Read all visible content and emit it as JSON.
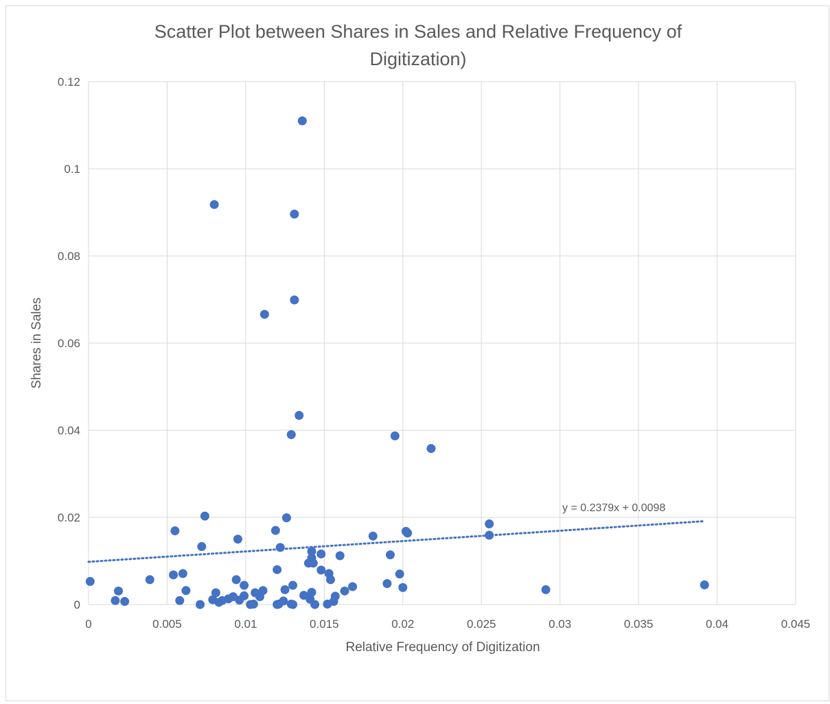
{
  "chart_data": {
    "type": "scatter",
    "title_line1": "Scatter Plot between Shares in Sales and Relative Frequency of",
    "title_line2": "Digitization)",
    "xlabel": "Relative Frequency of Digitization",
    "ylabel": "Shares in Sales",
    "xlim": [
      0,
      0.045
    ],
    "ylim": [
      0,
      0.12
    ],
    "x_ticks": [
      0,
      0.005,
      0.01,
      0.015,
      0.02,
      0.025,
      0.03,
      0.035,
      0.04,
      0.045
    ],
    "y_ticks": [
      0,
      0.02,
      0.04,
      0.06,
      0.08,
      0.1,
      0.12
    ],
    "x_tick_labels": [
      "0",
      "0.005",
      "0.01",
      "0.015",
      "0.02",
      "0.025",
      "0.03",
      "0.035",
      "0.04",
      "0.045"
    ],
    "y_tick_labels": [
      "0",
      "0.02",
      "0.04",
      "0.06",
      "0.08",
      "0.1",
      "0.12"
    ],
    "grid": true,
    "marker_color": "#4472c4",
    "trendline": {
      "slope": 0.2379,
      "intercept": 0.0098,
      "x_range": [
        0,
        0.0392
      ],
      "label": "y = 0.2379x + 0.0098",
      "color": "#4472c4"
    },
    "points": [
      [
        0.0001,
        0.0053
      ],
      [
        0.0017,
        0.0009
      ],
      [
        0.0019,
        0.0031
      ],
      [
        0.0023,
        0.0007
      ],
      [
        0.0039,
        0.0057
      ],
      [
        0.0054,
        0.0068
      ],
      [
        0.0055,
        0.0169
      ],
      [
        0.0058,
        0.0009
      ],
      [
        0.006,
        0.0071
      ],
      [
        0.0062,
        0.0032
      ],
      [
        0.0071,
        0.0
      ],
      [
        0.0072,
        0.0133
      ],
      [
        0.0074,
        0.0203
      ],
      [
        0.0079,
        0.0011
      ],
      [
        0.008,
        0.0918
      ],
      [
        0.0081,
        0.0027
      ],
      [
        0.0083,
        0.0005
      ],
      [
        0.0085,
        0.0009
      ],
      [
        0.0089,
        0.0013
      ],
      [
        0.0092,
        0.0018
      ],
      [
        0.0094,
        0.0057
      ],
      [
        0.0095,
        0.015
      ],
      [
        0.0096,
        0.001
      ],
      [
        0.0099,
        0.002
      ],
      [
        0.0099,
        0.0044
      ],
      [
        0.0103,
        0.0
      ],
      [
        0.0105,
        0.0001
      ],
      [
        0.0106,
        0.0027
      ],
      [
        0.0109,
        0.0018
      ],
      [
        0.0111,
        0.0032
      ],
      [
        0.0112,
        0.0666
      ],
      [
        0.0119,
        0.017
      ],
      [
        0.012,
        0.008
      ],
      [
        0.012,
        0.0
      ],
      [
        0.0121,
        0.0001
      ],
      [
        0.0122,
        0.0131
      ],
      [
        0.0124,
        0.0008
      ],
      [
        0.0125,
        0.0034
      ],
      [
        0.0126,
        0.0199
      ],
      [
        0.0129,
        0.039
      ],
      [
        0.0129,
        0.0001
      ],
      [
        0.013,
        0.0
      ],
      [
        0.013,
        0.0044
      ],
      [
        0.0131,
        0.0896
      ],
      [
        0.0131,
        0.0699
      ],
      [
        0.0134,
        0.0434
      ],
      [
        0.0136,
        0.111
      ],
      [
        0.0137,
        0.0021
      ],
      [
        0.014,
        0.0095
      ],
      [
        0.0141,
        0.0012
      ],
      [
        0.0142,
        0.0122
      ],
      [
        0.0142,
        0.0107
      ],
      [
        0.0142,
        0.0028
      ],
      [
        0.0143,
        0.0095
      ],
      [
        0.0144,
        0.0
      ],
      [
        0.0148,
        0.0079
      ],
      [
        0.0148,
        0.0116
      ],
      [
        0.0152,
        0.0001
      ],
      [
        0.0153,
        0.0071
      ],
      [
        0.0154,
        0.0057
      ],
      [
        0.0156,
        0.0007
      ],
      [
        0.0157,
        0.0019
      ],
      [
        0.016,
        0.0112
      ],
      [
        0.0163,
        0.0031
      ],
      [
        0.0168,
        0.0041
      ],
      [
        0.0181,
        0.0157
      ],
      [
        0.019,
        0.0048
      ],
      [
        0.0192,
        0.0114
      ],
      [
        0.0195,
        0.0387
      ],
      [
        0.0198,
        0.007
      ],
      [
        0.02,
        0.0039
      ],
      [
        0.0202,
        0.0168
      ],
      [
        0.0203,
        0.0164
      ],
      [
        0.0218,
        0.0358
      ],
      [
        0.0255,
        0.0185
      ],
      [
        0.0255,
        0.0159
      ],
      [
        0.0291,
        0.0034
      ],
      [
        0.0392,
        0.0045
      ]
    ]
  }
}
